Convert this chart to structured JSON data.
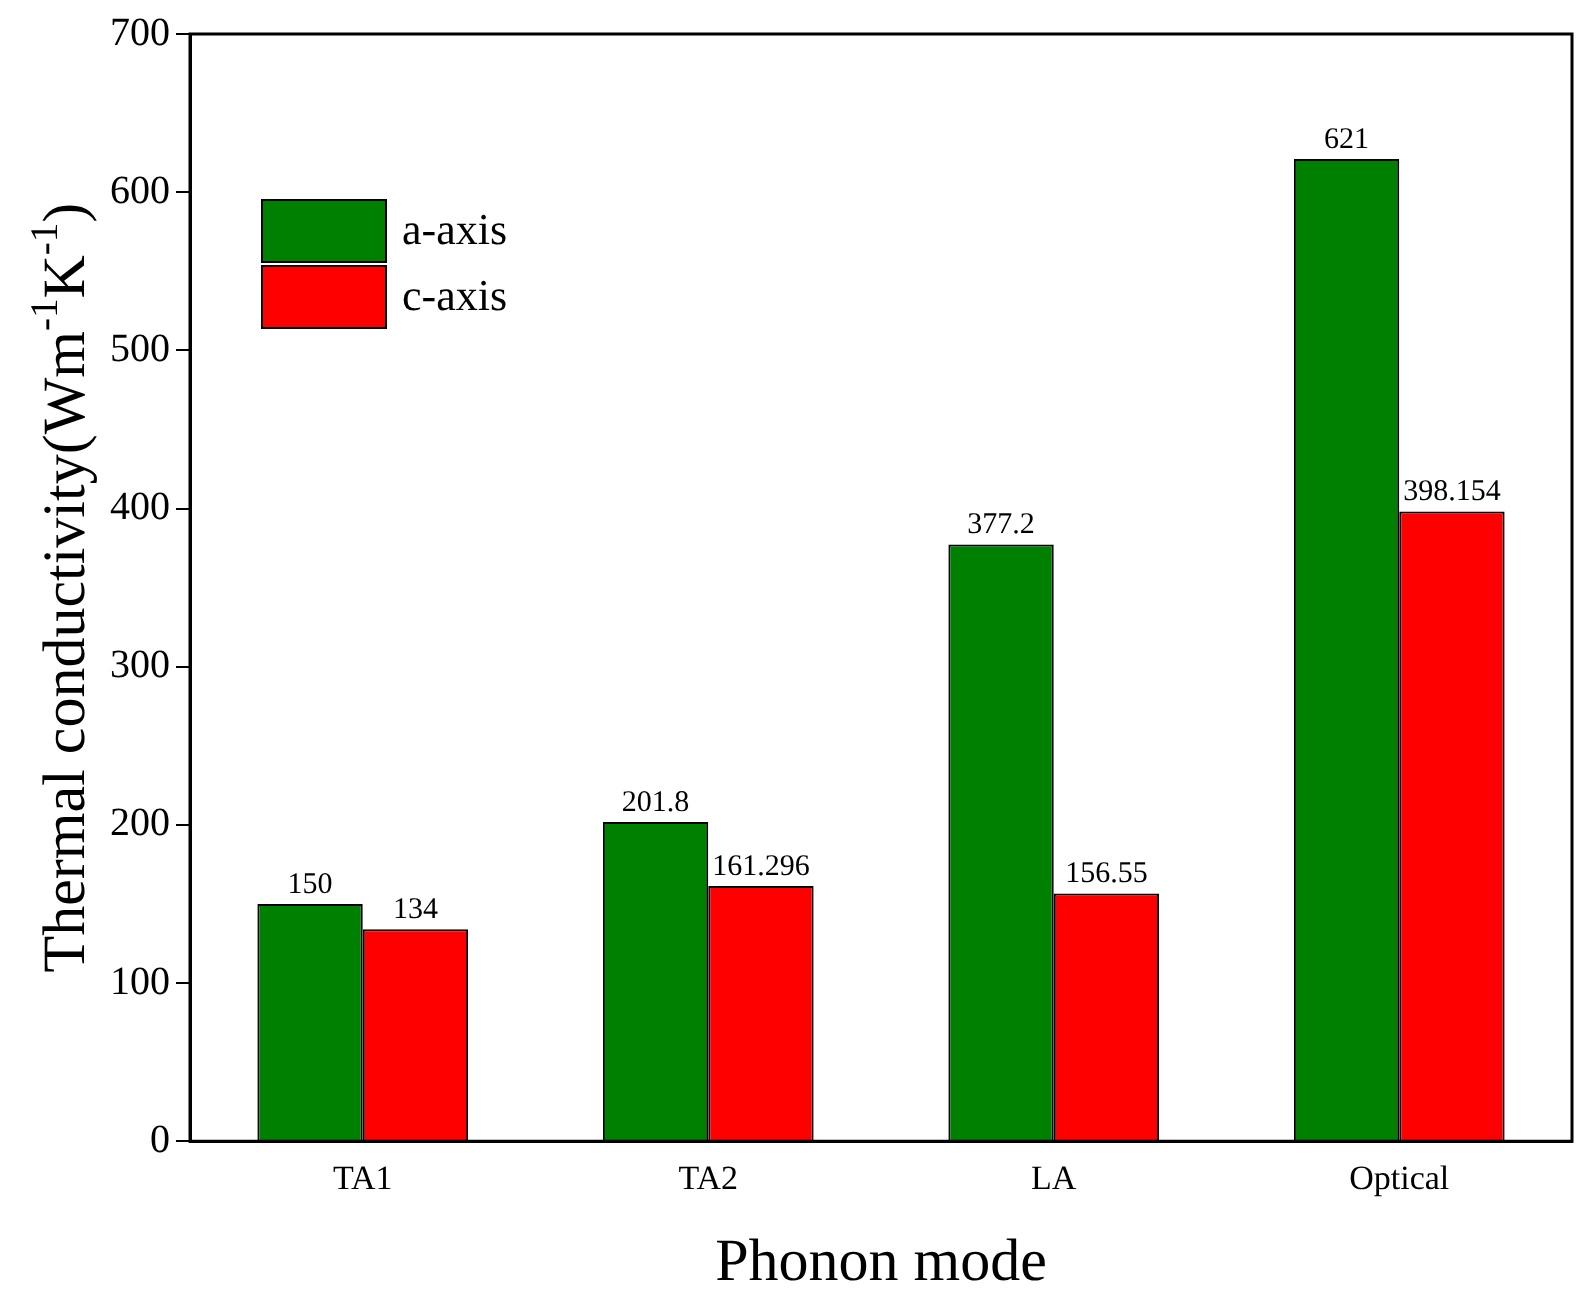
{
  "chart_data": {
    "type": "bar",
    "xlabel": "Phonon mode",
    "ylabel": "Thermal conductivity(Wm$^{-1}$K$^{-1}$)",
    "categories": [
      "TA1",
      "TA2",
      "LA",
      "Optical"
    ],
    "series": [
      {
        "name": "a-axis",
        "color": "#008000",
        "values": [
          150,
          201.8,
          377.2,
          621
        ]
      },
      {
        "name": "c-axis",
        "color": "#ff0000",
        "values": [
          134,
          161.296,
          156.55,
          398.154
        ]
      }
    ],
    "ylim": [
      0,
      700
    ],
    "yticks": [
      0,
      100,
      200,
      300,
      400,
      500,
      600,
      700
    ],
    "grid": false,
    "legend": "top left",
    "data_labels": true
  }
}
